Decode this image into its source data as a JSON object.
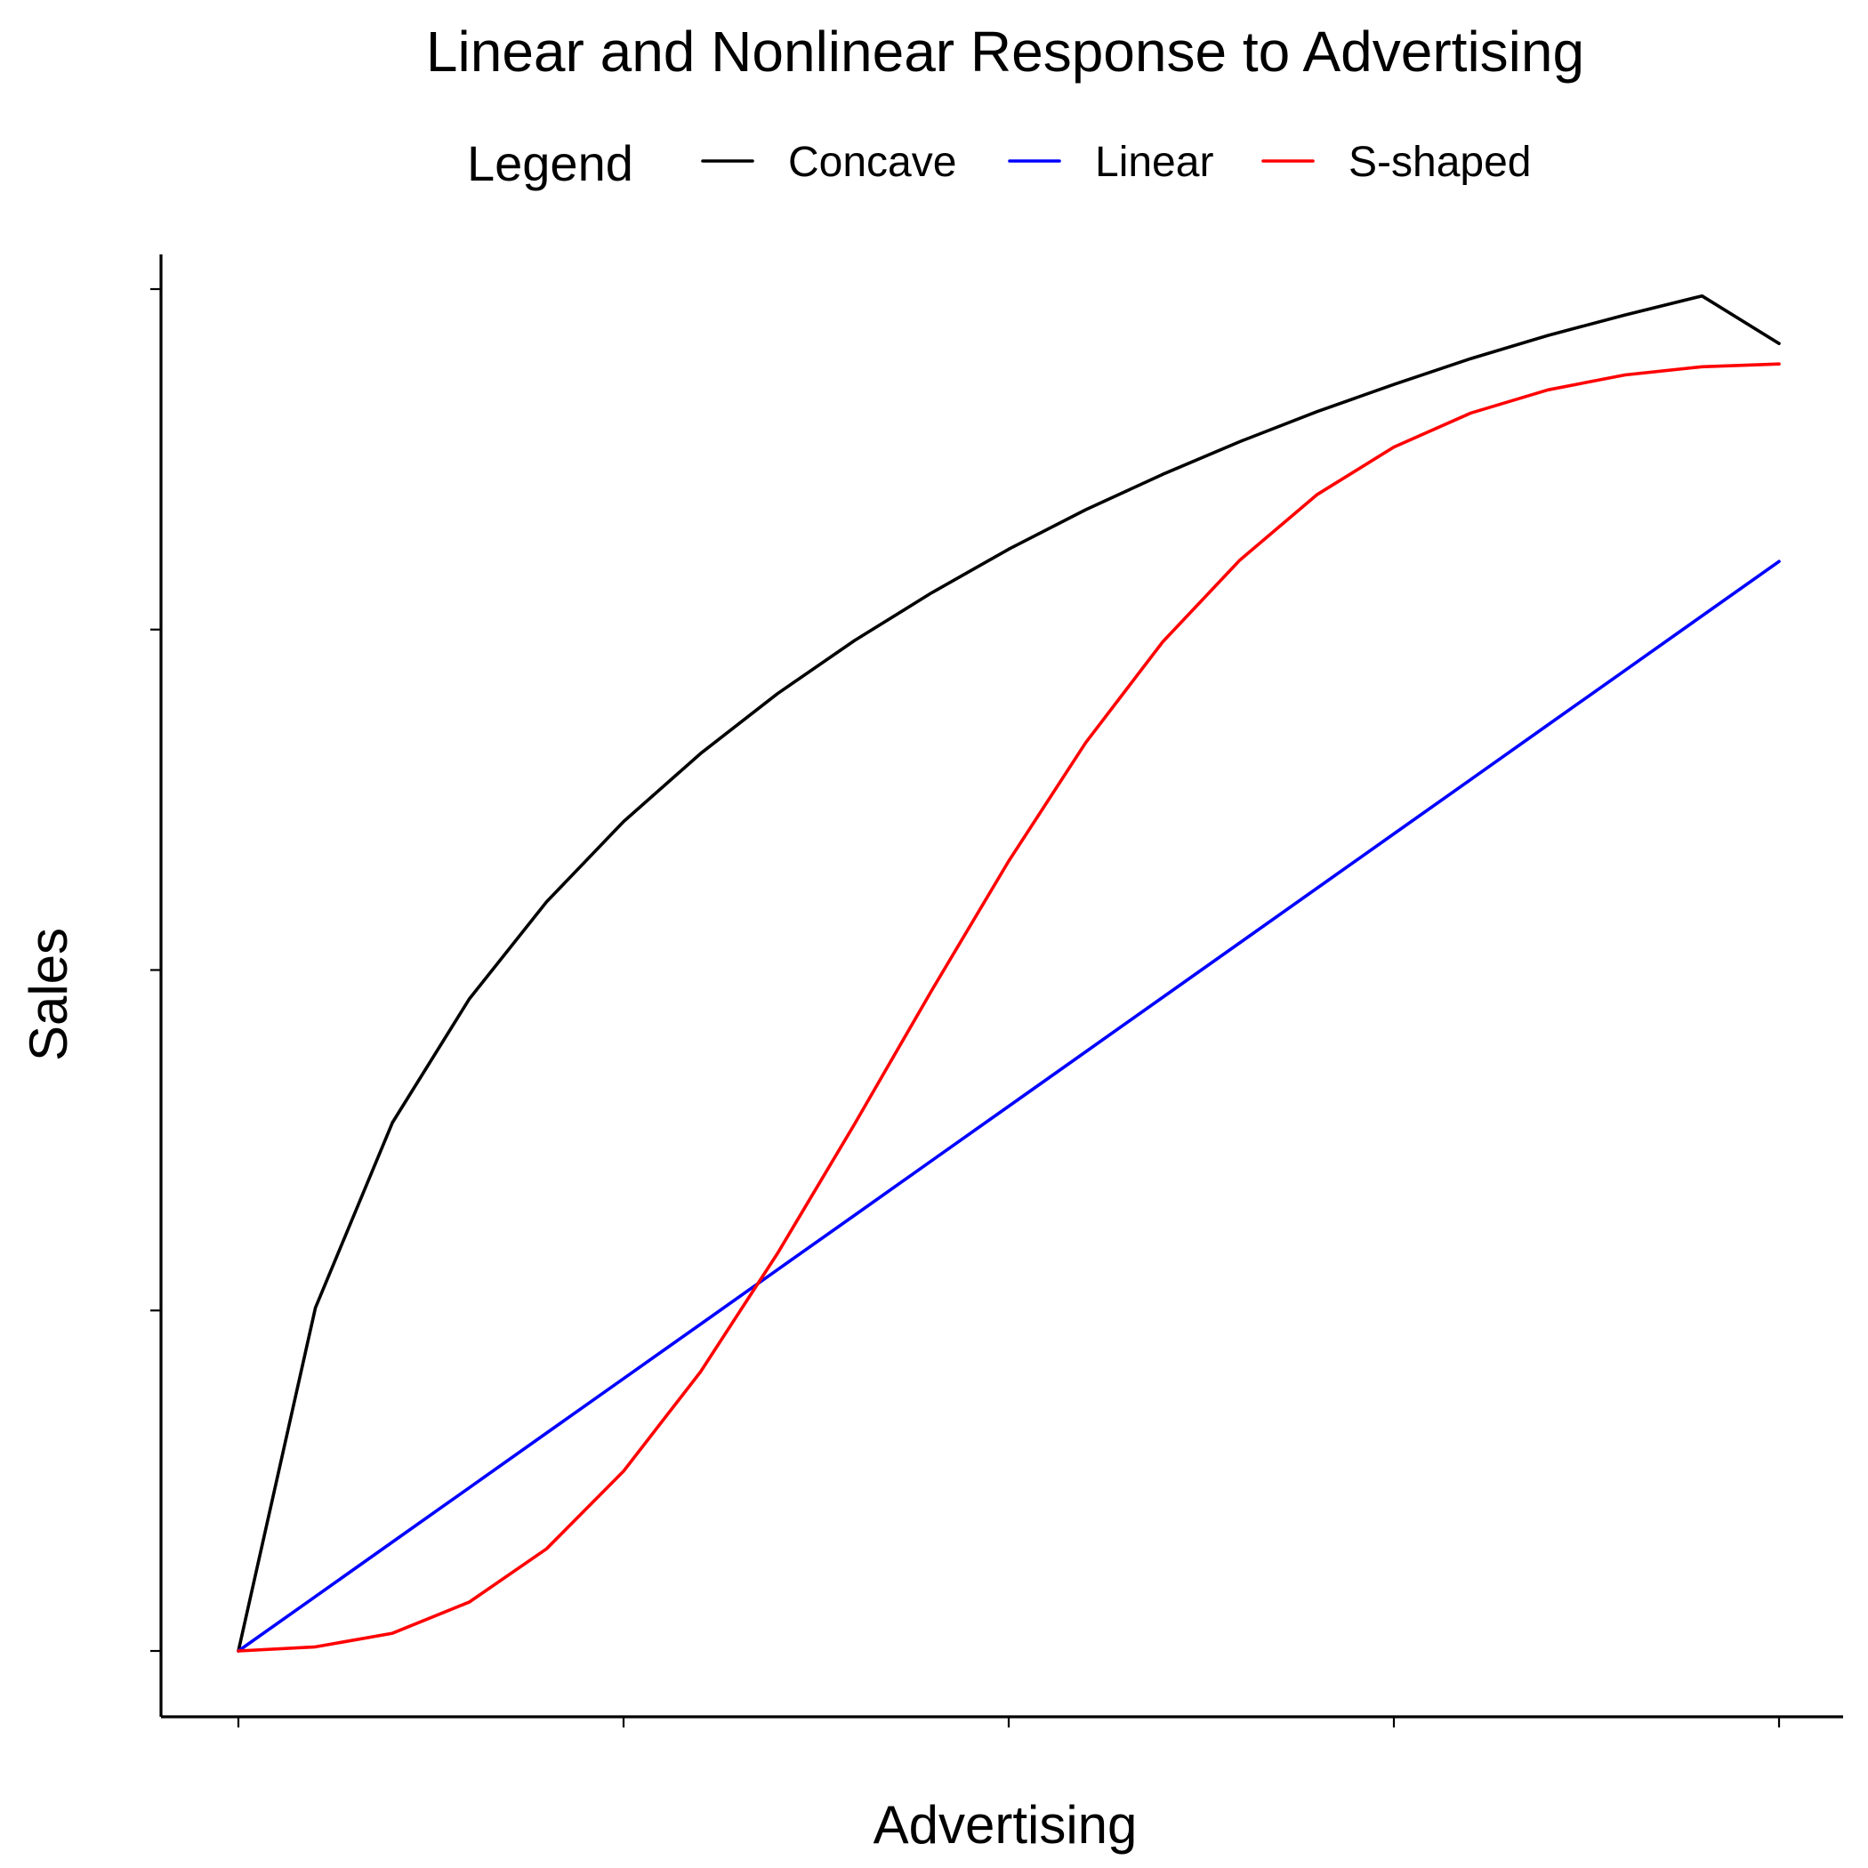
{
  "chart_data": {
    "type": "line",
    "title": "Linear and Nonlinear Response to Advertising",
    "xlabel": "Advertising",
    "ylabel": "Sales",
    "xlim": [
      0,
      1
    ],
    "ylim": [
      -0.04,
      1.0
    ],
    "x_ticks": [
      0,
      0.25,
      0.5,
      0.75,
      1.0
    ],
    "y_ticks": [
      0,
      0.25,
      0.5,
      0.75,
      1.0
    ],
    "tick_labels_shown": false,
    "grid": false,
    "legend": {
      "title": "Legend",
      "position": "top"
    },
    "x": [
      0,
      0.05,
      0.1,
      0.15,
      0.2,
      0.25,
      0.3,
      0.35,
      0.4,
      0.45,
      0.5,
      0.55,
      0.6,
      0.65,
      0.7,
      0.75,
      0.8,
      0.85,
      0.9,
      0.95,
      1.0
    ],
    "series": [
      {
        "name": "Concave",
        "color": "#000000",
        "values": [
          0,
          0.252,
          0.388,
          0.479,
          0.55,
          0.609,
          0.659,
          0.703,
          0.742,
          0.777,
          0.809,
          0.838,
          0.864,
          0.888,
          0.91,
          0.93,
          0.949,
          0.966,
          0.981,
          0.995,
          0.96
        ]
      },
      {
        "name": "Linear",
        "color": "#0000ff",
        "values": [
          0,
          0.04,
          0.08,
          0.12,
          0.16,
          0.2,
          0.24,
          0.28,
          0.32,
          0.36,
          0.4,
          0.44,
          0.48,
          0.52,
          0.56,
          0.6,
          0.64,
          0.68,
          0.72,
          0.76,
          0.8
        ]
      },
      {
        "name": "S-shaped",
        "color": "#ff0000",
        "values": [
          0,
          0.003,
          0.013,
          0.036,
          0.075,
          0.132,
          0.205,
          0.292,
          0.387,
          0.485,
          0.58,
          0.667,
          0.741,
          0.801,
          0.849,
          0.884,
          0.909,
          0.926,
          0.937,
          0.943,
          0.945
        ]
      }
    ]
  }
}
